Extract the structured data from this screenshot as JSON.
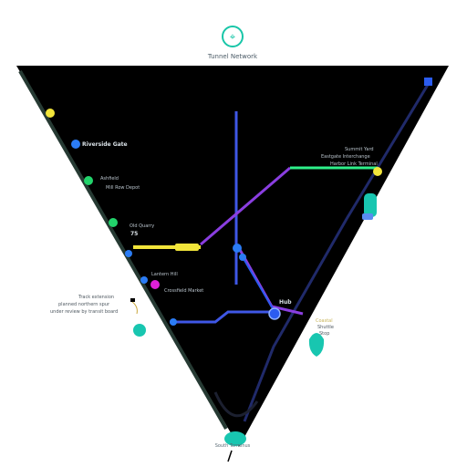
{
  "header": {
    "logo_icon": "map-pin-icon",
    "caption": "Tunnel Network"
  },
  "labels": {
    "left_station_1": "Riverside Gate",
    "left_station_2_line_1": "Ashfield",
    "left_station_2_line_2": "Mill Row Depot",
    "left_station_3": "Old Quarry",
    "left_station_3_code": "75",
    "left_station_4": "Lantern Hill",
    "left_station_5": "Crossfield Market",
    "outer_note_line_1": "Track extension",
    "outer_note_line_2": "planned northern spur",
    "outer_note_line_3": "under review by transit board",
    "right_station_top_line_1": "Summit Yard",
    "right_station_top_line_2": "Eastgate Interchange",
    "right_station_top_line_3": "Harbor Link Terminal",
    "center_junction": "Hub",
    "right_outer_note_line_1": "Coastal",
    "right_outer_note_line_2": "Shuttle",
    "right_outer_note_line_3": "Stop",
    "bottom_caption": "South Terminus"
  },
  "colors": {
    "frame_fill": "#000000",
    "outer_rail": "#263a33",
    "inner_rail": "#202a6a",
    "line_blue": "#3f57e6",
    "line_purple": "#8a3ee0",
    "line_green": "#2ef08a",
    "line_yellow": "#f2e53a",
    "node_cyan": "#18c6b0",
    "node_blue": "#2b7cf5",
    "node_green": "#22d36b",
    "node_magenta": "#e020d8"
  }
}
